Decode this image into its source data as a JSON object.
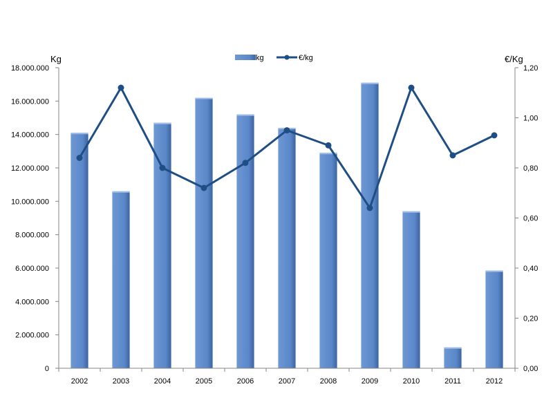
{
  "chart_data": {
    "type": "bar",
    "categories": [
      "2002",
      "2003",
      "2004",
      "2005",
      "2006",
      "2007",
      "2008",
      "2009",
      "2010",
      "2011",
      "2012"
    ],
    "series": [
      {
        "name": "kg",
        "type": "bar",
        "axis": "left",
        "values": [
          14100000,
          10600000,
          14700000,
          16200000,
          15200000,
          14400000,
          12900000,
          17100000,
          9400000,
          1250000,
          5850000
        ]
      },
      {
        "name": "€/kg",
        "type": "line",
        "axis": "right",
        "values": [
          0.84,
          1.12,
          0.8,
          0.72,
          0.82,
          0.95,
          0.89,
          0.64,
          1.12,
          0.85,
          0.93
        ]
      }
    ],
    "ylabel": "Kg",
    "y2label": "€/Kg",
    "ylim": [
      0,
      18000000
    ],
    "y2lim": [
      0,
      1.2
    ],
    "yticks": [
      "0",
      "2.000.000",
      "4.000.000",
      "6.000.000",
      "8.000.000",
      "10.000.000",
      "12.000.000",
      "14.000.000",
      "16.000.000",
      "18.000.000"
    ],
    "y2ticks": [
      "0,00",
      "0,20",
      "0,40",
      "0,60",
      "0,80",
      "1,00",
      "1,20"
    ],
    "legend_position": "top",
    "grid": false,
    "colors": {
      "bar": "#5a87c8",
      "bar_shade": "#2f4f7f",
      "line": "#1f4e84"
    }
  }
}
